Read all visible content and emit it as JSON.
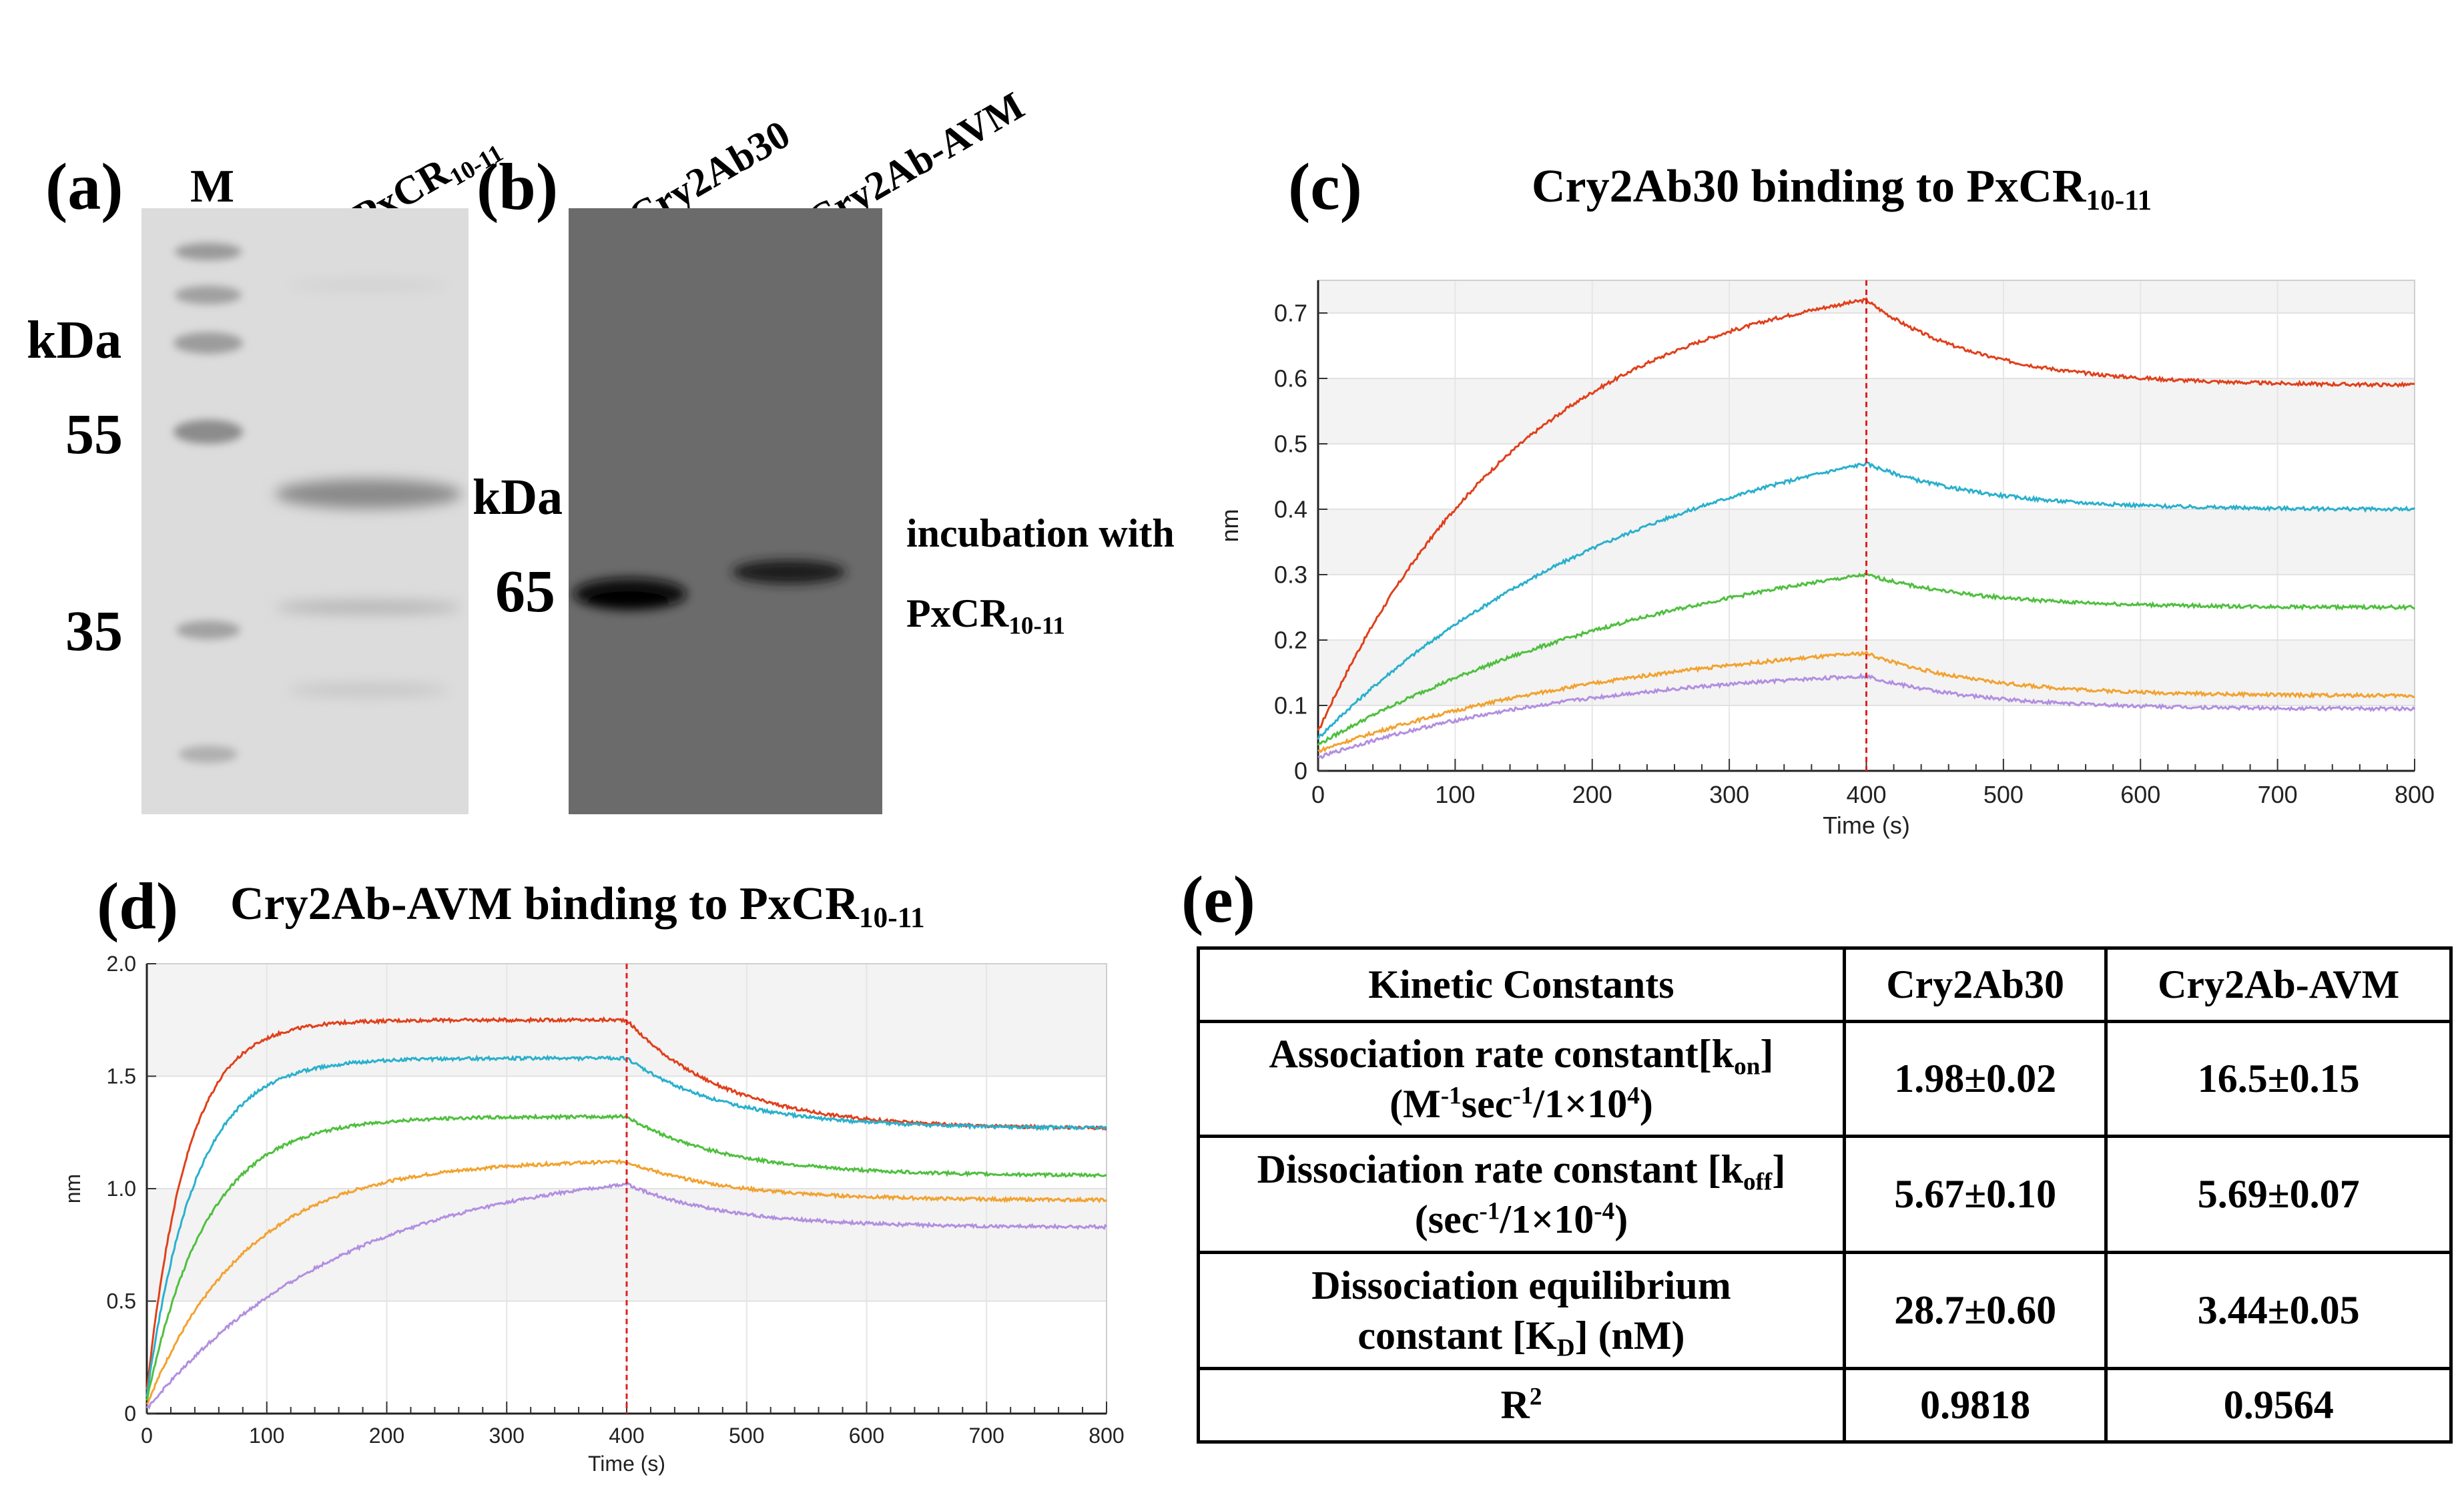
{
  "panel_a": {
    "letter": "(a)",
    "marker_label": "M",
    "lane_label": "PxCR",
    "lane_label_sub": "10-11",
    "unit": "kDa",
    "marker_sizes": [
      "55",
      "35"
    ]
  },
  "panel_b": {
    "letter": "(b)",
    "lane1": "Cry2Ab30",
    "lane2": "Cry2Ab-AVM",
    "unit": "kDa",
    "marker_size": "65",
    "note_line1": "incubation with",
    "note_line2": "PxCR",
    "note_line2_sub": "10-11"
  },
  "panel_c": {
    "letter": "(c)",
    "title": "Cry2Ab30 binding to PxCR",
    "title_sub": "10-11"
  },
  "panel_d": {
    "letter": "(d)",
    "title": "Cry2Ab-AVM  binding to PxCR",
    "title_sub": "10-11"
  },
  "panel_e": {
    "letter": "(e)",
    "headers": [
      "Kinetic Constants",
      "Cry2Ab30",
      "Cry2Ab-AVM"
    ],
    "rows": {
      "kon": {
        "l1": "Association rate constant[k",
        "l1_sub": "on",
        "l1_end": "]",
        "l2a": "(M",
        "l2_sup1": "-1",
        "l2b": "sec",
        "l2_sup2": "-1",
        "l2c": "/1×10",
        "l2_sup3": "4",
        "l2d": ")",
        "v1": "1.98±0.02",
        "v2": "16.5±0.15"
      },
      "koff": {
        "l1": "Dissociation rate constant [k",
        "l1_sub": "off",
        "l1_end": "]",
        "l2a": "(sec",
        "l2_sup1": "-1",
        "l2b": "/1×10",
        "l2_sup2": "-4",
        "l2c": ")",
        "v1": "5.67±0.10",
        "v2": "5.69±0.07"
      },
      "kd": {
        "l1": "Dissociation equilibrium",
        "l2a": "constant [K",
        "l2_sub": "D",
        "l2b": "] (nM)",
        "v1": "28.7±0.60",
        "v2": "3.44±0.05"
      },
      "r2": {
        "label": "R",
        "label_sup": "2",
        "v1": "0.9818",
        "v2": "0.9564"
      }
    }
  },
  "chart_data": [
    {
      "type": "line",
      "panel": "c",
      "title": "Cry2Ab30 binding to PxCR10-11",
      "xlabel": "Time (s)",
      "ylabel": "nm",
      "xlim": [
        0,
        800
      ],
      "ylim": [
        0,
        0.75
      ],
      "xticks": [
        0,
        100,
        200,
        300,
        400,
        500,
        600,
        700,
        800
      ],
      "yticks": [
        0,
        0.1,
        0.2,
        0.3,
        0.4,
        0.5,
        0.6,
        0.7
      ],
      "ytick_labels": [
        "0",
        "0.1",
        "0.2",
        "0.3",
        "0.4",
        "0.5",
        "0.6",
        "0.7"
      ],
      "switch_time": 400,
      "series": [
        {
          "name": "s1",
          "color": "#e0401b",
          "y0": 0.06,
          "peak": 0.72,
          "rate": 0.0065,
          "end": 0.59
        },
        {
          "name": "s2",
          "color": "#2ab0cc",
          "y0": 0.05,
          "peak": 0.47,
          "rate": 0.004,
          "end": 0.4
        },
        {
          "name": "s3",
          "color": "#4fbf3f",
          "y0": 0.04,
          "peak": 0.3,
          "rate": 0.0035,
          "end": 0.25
        },
        {
          "name": "s4",
          "color": "#f2a230",
          "y0": 0.03,
          "peak": 0.18,
          "rate": 0.004,
          "end": 0.115
        },
        {
          "name": "s5",
          "color": "#b28fe0",
          "y0": 0.02,
          "peak": 0.145,
          "rate": 0.005,
          "end": 0.095
        }
      ]
    },
    {
      "type": "line",
      "panel": "d",
      "title": "Cry2Ab-AVM  binding to PxCR10-11",
      "xlabel": "Time (s)",
      "ylabel": "nm",
      "xlim": [
        0,
        800
      ],
      "ylim": [
        0,
        2.0
      ],
      "xticks": [
        0,
        100,
        200,
        300,
        400,
        500,
        600,
        700,
        800
      ],
      "yticks": [
        0,
        0.5,
        1.0,
        1.5,
        2.0
      ],
      "ytick_labels": [
        "0",
        "0.5",
        "1.0",
        "1.5",
        "2.0"
      ],
      "switch_time": 400,
      "series": [
        {
          "name": "s1",
          "color": "#e0401b",
          "y0": 0.1,
          "peak": 1.75,
          "rate": 0.03,
          "end": 1.27
        },
        {
          "name": "s2",
          "color": "#2ab0cc",
          "y0": 0.08,
          "peak": 1.58,
          "rate": 0.025,
          "end": 1.27
        },
        {
          "name": "s3",
          "color": "#4fbf3f",
          "y0": 0.06,
          "peak": 1.32,
          "rate": 0.02,
          "end": 1.06
        },
        {
          "name": "s4",
          "color": "#f2a230",
          "y0": 0.04,
          "peak": 1.12,
          "rate": 0.012,
          "end": 0.95
        },
        {
          "name": "s5",
          "color": "#b28fe0",
          "y0": 0.02,
          "peak": 1.02,
          "rate": 0.006,
          "end": 0.83
        }
      ]
    }
  ]
}
